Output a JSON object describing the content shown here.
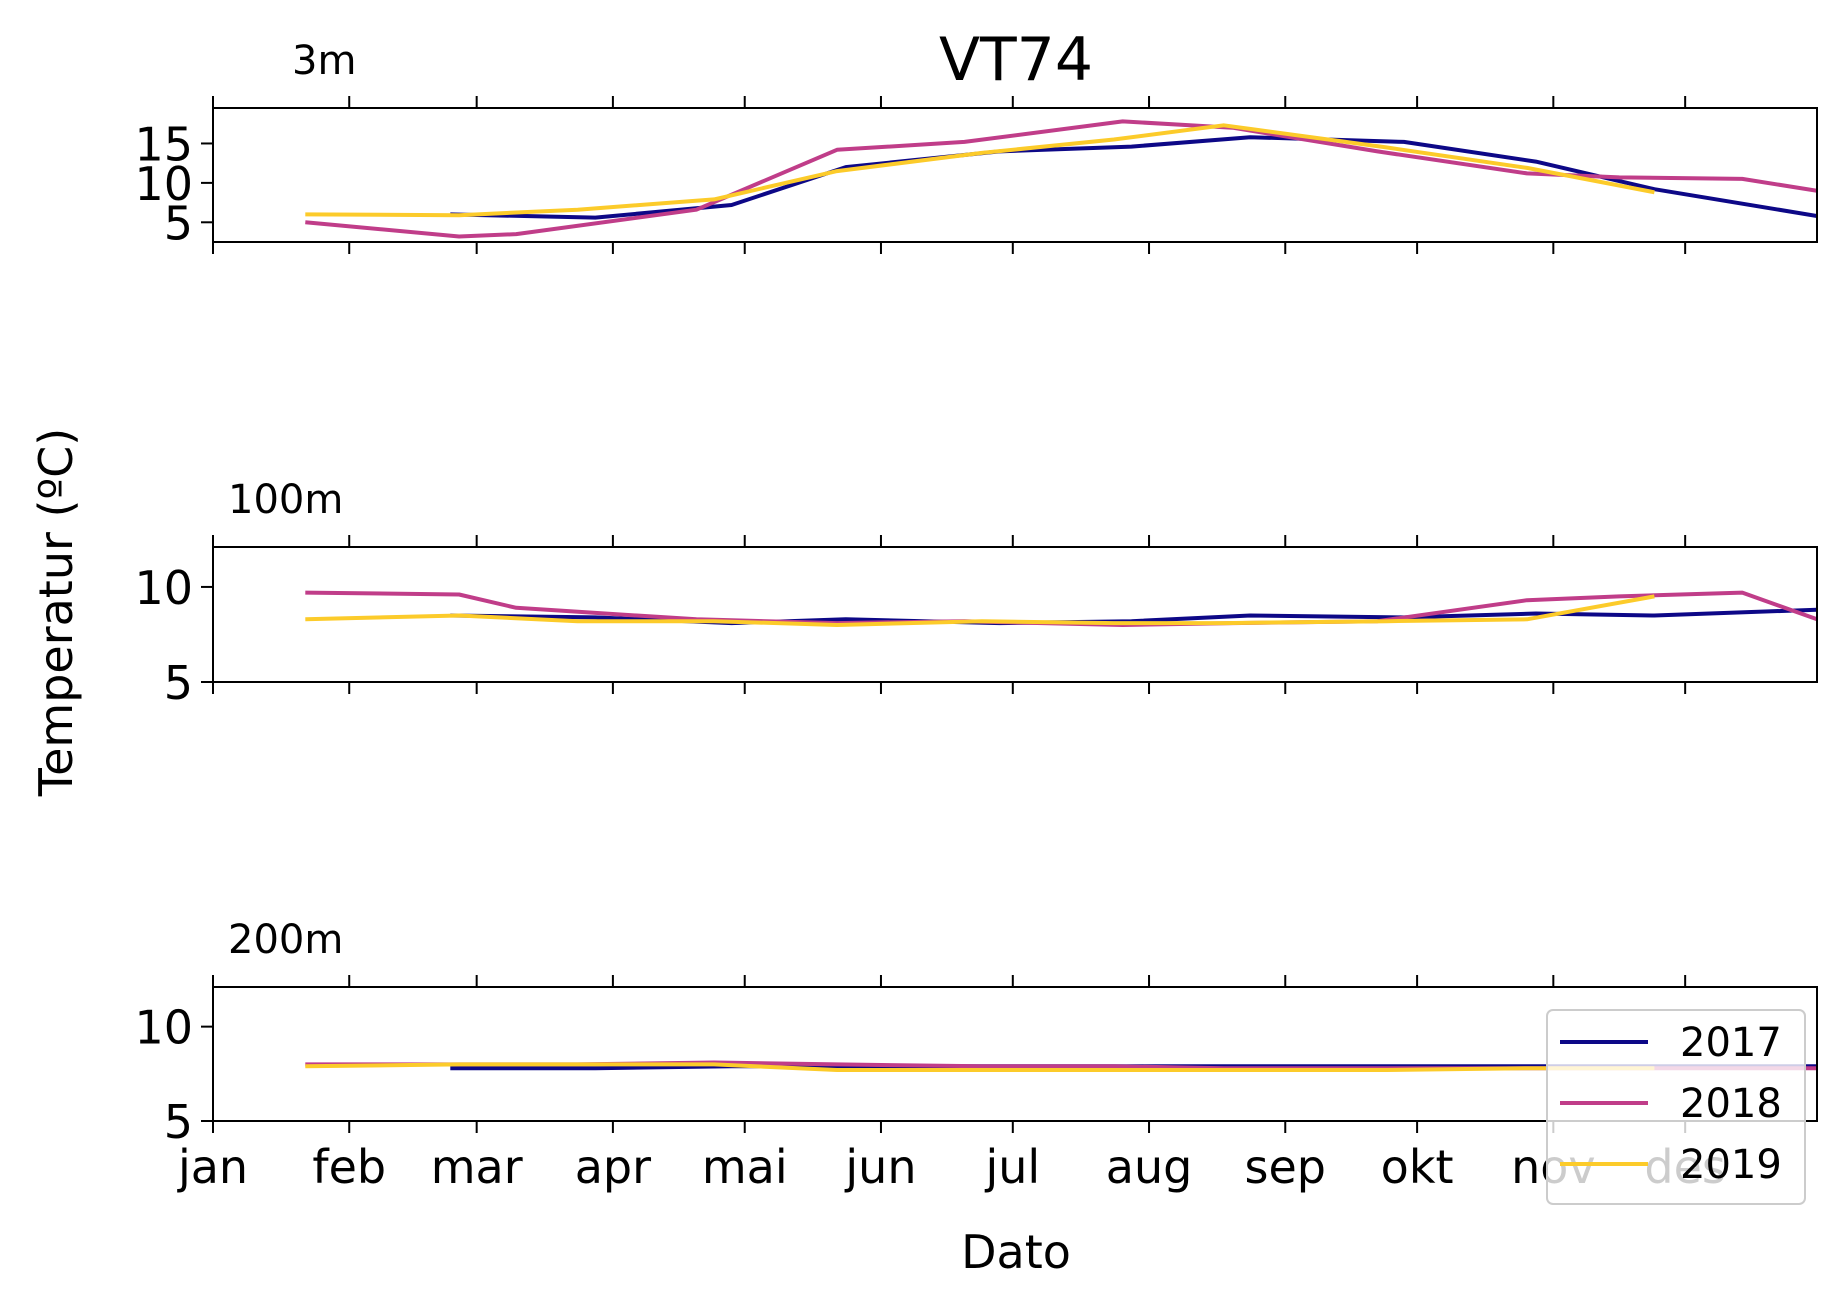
{
  "chart_data": {
    "type": "line",
    "title": "VT74",
    "xlabel": "Dato",
    "ylabel": "Temperatur (ºC)",
    "x_months": [
      "jan",
      "feb",
      "mar",
      "apr",
      "mai",
      "jun",
      "jul",
      "aug",
      "sep",
      "okt",
      "nov",
      "des"
    ],
    "x_domain": [
      "2000-01-01",
      "2000-12-31"
    ],
    "legend": {
      "position": "lower right",
      "labels": [
        "2017",
        "2018",
        "2019"
      ]
    },
    "colors": {
      "2017": "#0d0887",
      "2018": "#c03d89",
      "2019": "#fccb2a"
    },
    "panels": [
      {
        "label": "3m",
        "ylim": [
          2.5,
          19.5
        ],
        "yticks": [
          5,
          10,
          15
        ],
        "series": [
          {
            "name": "2017",
            "points": [
              [
                "2000-02-24",
                6.0
              ],
              [
                "2000-03-28",
                5.6
              ],
              [
                "2000-04-28",
                7.2
              ],
              [
                "2000-05-24",
                12.0
              ],
              [
                "2000-06-28",
                14.0
              ],
              [
                "2000-07-28",
                14.6
              ],
              [
                "2000-08-24",
                15.8
              ],
              [
                "2000-09-28",
                15.2
              ],
              [
                "2000-10-28",
                12.7
              ],
              [
                "2000-11-24",
                9.2
              ],
              [
                "2000-12-31",
                5.8
              ]
            ]
          },
          {
            "name": "2018",
            "points": [
              [
                "2000-01-22",
                5.0
              ],
              [
                "2000-02-26",
                3.2
              ],
              [
                "2000-03-10",
                3.5
              ],
              [
                "2000-04-20",
                6.6
              ],
              [
                "2000-05-22",
                14.2
              ],
              [
                "2000-06-20",
                15.2
              ],
              [
                "2000-07-26",
                17.8
              ],
              [
                "2000-08-20",
                17.0
              ],
              [
                "2000-09-22",
                14.0
              ],
              [
                "2000-10-26",
                11.2
              ],
              [
                "2000-11-16",
                10.7
              ],
              [
                "2000-12-14",
                10.5
              ],
              [
                "2000-12-31",
                9.0
              ]
            ]
          },
          {
            "name": "2019",
            "points": [
              [
                "2000-01-22",
                6.0
              ],
              [
                "2000-02-26",
                5.9
              ],
              [
                "2000-03-24",
                6.6
              ],
              [
                "2000-04-24",
                7.9
              ],
              [
                "2000-05-22",
                11.5
              ],
              [
                "2000-06-24",
                13.8
              ],
              [
                "2000-07-24",
                15.5
              ],
              [
                "2000-08-18",
                17.3
              ],
              [
                "2000-09-24",
                14.5
              ],
              [
                "2000-10-26",
                11.9
              ],
              [
                "2000-11-24",
                8.8
              ]
            ]
          }
        ]
      },
      {
        "label": "100m",
        "ylim": [
          5,
          12.1
        ],
        "yticks": [
          5,
          10
        ],
        "series": [
          {
            "name": "2017",
            "points": [
              [
                "2000-02-24",
                8.5
              ],
              [
                "2000-03-28",
                8.4
              ],
              [
                "2000-04-28",
                8.1
              ],
              [
                "2000-05-24",
                8.3
              ],
              [
                "2000-06-28",
                8.1
              ],
              [
                "2000-07-28",
                8.2
              ],
              [
                "2000-08-24",
                8.5
              ],
              [
                "2000-09-28",
                8.4
              ],
              [
                "2000-10-28",
                8.6
              ],
              [
                "2000-11-24",
                8.5
              ],
              [
                "2000-12-31",
                8.8
              ]
            ]
          },
          {
            "name": "2018",
            "points": [
              [
                "2000-01-22",
                9.7
              ],
              [
                "2000-02-26",
                9.6
              ],
              [
                "2000-03-10",
                8.9
              ],
              [
                "2000-04-20",
                8.3
              ],
              [
                "2000-05-22",
                8.1
              ],
              [
                "2000-06-20",
                8.2
              ],
              [
                "2000-07-26",
                8.0
              ],
              [
                "2000-08-20",
                8.1
              ],
              [
                "2000-09-22",
                8.2
              ],
              [
                "2000-10-26",
                9.3
              ],
              [
                "2000-11-16",
                9.5
              ],
              [
                "2000-12-14",
                9.7
              ],
              [
                "2000-12-31",
                8.3
              ]
            ]
          },
          {
            "name": "2019",
            "points": [
              [
                "2000-01-22",
                8.3
              ],
              [
                "2000-02-26",
                8.5
              ],
              [
                "2000-03-24",
                8.2
              ],
              [
                "2000-04-24",
                8.2
              ],
              [
                "2000-05-22",
                8.0
              ],
              [
                "2000-06-24",
                8.2
              ],
              [
                "2000-07-24",
                8.1
              ],
              [
                "2000-08-18",
                8.1
              ],
              [
                "2000-09-24",
                8.2
              ],
              [
                "2000-10-26",
                8.3
              ],
              [
                "2000-11-24",
                9.5
              ]
            ]
          }
        ]
      },
      {
        "label": "200m",
        "ylim": [
          5,
          12.1
        ],
        "yticks": [
          5,
          10
        ],
        "series": [
          {
            "name": "2017",
            "points": [
              [
                "2000-02-24",
                7.8
              ],
              [
                "2000-03-28",
                7.8
              ],
              [
                "2000-04-28",
                7.9
              ],
              [
                "2000-05-24",
                7.9
              ],
              [
                "2000-06-28",
                7.9
              ],
              [
                "2000-07-28",
                7.9
              ],
              [
                "2000-08-24",
                7.9
              ],
              [
                "2000-09-28",
                7.9
              ],
              [
                "2000-10-28",
                7.9
              ],
              [
                "2000-11-24",
                7.9
              ],
              [
                "2000-12-31",
                7.9
              ]
            ]
          },
          {
            "name": "2018",
            "points": [
              [
                "2000-01-22",
                8.0
              ],
              [
                "2000-02-26",
                8.0
              ],
              [
                "2000-03-24",
                8.0
              ],
              [
                "2000-04-24",
                8.1
              ],
              [
                "2000-05-22",
                8.0
              ],
              [
                "2000-06-24",
                7.9
              ],
              [
                "2000-07-24",
                7.9
              ],
              [
                "2000-08-18",
                7.8
              ],
              [
                "2000-09-24",
                7.8
              ],
              [
                "2000-10-26",
                7.8
              ],
              [
                "2000-11-24",
                7.8
              ],
              [
                "2000-12-31",
                7.8
              ]
            ]
          },
          {
            "name": "2019",
            "points": [
              [
                "2000-01-22",
                7.9
              ],
              [
                "2000-02-26",
                8.0
              ],
              [
                "2000-03-24",
                8.0
              ],
              [
                "2000-04-24",
                8.0
              ],
              [
                "2000-05-22",
                7.7
              ],
              [
                "2000-06-24",
                7.7
              ],
              [
                "2000-07-24",
                7.7
              ],
              [
                "2000-08-18",
                7.7
              ],
              [
                "2000-09-24",
                7.7
              ],
              [
                "2000-10-26",
                7.8
              ],
              [
                "2000-11-24",
                7.8
              ]
            ]
          }
        ]
      }
    ]
  }
}
